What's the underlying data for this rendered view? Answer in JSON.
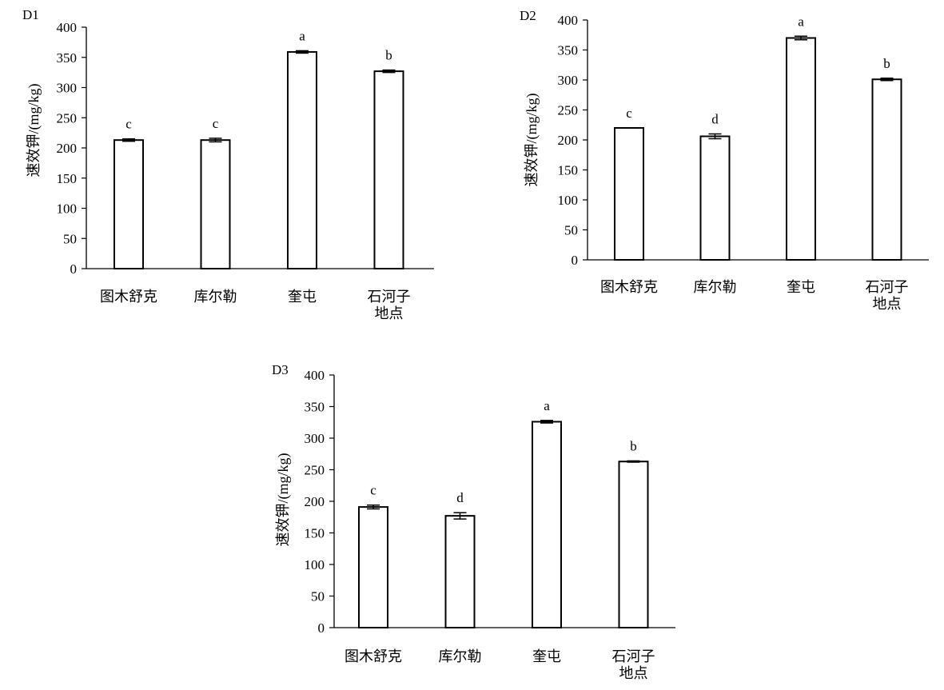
{
  "chart_data": [
    {
      "type": "bar",
      "panel_label": "D1",
      "ylabel": "速效钾/(mg/kg)",
      "xlabel": "地点",
      "ylim": [
        0,
        400
      ],
      "yticks": [
        0,
        50,
        100,
        150,
        200,
        250,
        300,
        350,
        400
      ],
      "categories": [
        "图木舒克",
        "库尔勒",
        "奎屯",
        "石河子"
      ],
      "values": [
        213,
        213,
        359,
        327
      ],
      "errors": [
        2,
        3,
        2,
        2
      ],
      "significance": [
        "c",
        "c",
        "a",
        "b"
      ]
    },
    {
      "type": "bar",
      "panel_label": "D2",
      "ylabel": "速效钾/(mg/kg)",
      "xlabel": "地点",
      "ylim": [
        0,
        400
      ],
      "yticks": [
        0,
        50,
        100,
        150,
        200,
        250,
        300,
        350,
        400
      ],
      "categories": [
        "图木舒克",
        "库尔勒",
        "奎屯",
        "石河子"
      ],
      "values": [
        220,
        206,
        370,
        301
      ],
      "errors": [
        0,
        4,
        3,
        2
      ],
      "significance": [
        "c",
        "d",
        "a",
        "b"
      ]
    },
    {
      "type": "bar",
      "panel_label": "D3",
      "ylabel": "速效钾/(mg/kg)",
      "xlabel": "地点",
      "ylim": [
        0,
        400
      ],
      "yticks": [
        0,
        50,
        100,
        150,
        200,
        250,
        300,
        350,
        400
      ],
      "categories": [
        "图木舒克",
        "库尔勒",
        "奎屯",
        "石河子"
      ],
      "values": [
        191,
        177,
        326,
        263
      ],
      "errors": [
        3,
        5,
        2,
        1
      ],
      "significance": [
        "c",
        "d",
        "a",
        "b"
      ]
    }
  ]
}
